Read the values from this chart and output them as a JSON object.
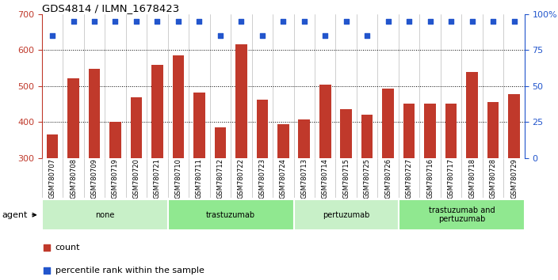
{
  "title": "GDS4814 / ILMN_1678423",
  "samples": [
    "GSM780707",
    "GSM780708",
    "GSM780709",
    "GSM780719",
    "GSM780720",
    "GSM780721",
    "GSM780710",
    "GSM780711",
    "GSM780712",
    "GSM780722",
    "GSM780723",
    "GSM780724",
    "GSM780713",
    "GSM780714",
    "GSM780715",
    "GSM780725",
    "GSM780726",
    "GSM780727",
    "GSM780716",
    "GSM780717",
    "GSM780718",
    "GSM780728",
    "GSM780729"
  ],
  "counts": [
    365,
    522,
    548,
    402,
    470,
    558,
    585,
    482,
    385,
    615,
    462,
    395,
    408,
    505,
    435,
    420,
    493,
    452,
    452,
    452,
    540,
    456,
    478
  ],
  "percentile_ranks": [
    88,
    96,
    96,
    96,
    96,
    96,
    96,
    96,
    88,
    96,
    88,
    96,
    96,
    88,
    96,
    88,
    96,
    96,
    96,
    96,
    96,
    96,
    96
  ],
  "groups": [
    {
      "label": "none",
      "start": 0,
      "end": 6,
      "color": "#c8f0c8"
    },
    {
      "label": "trastuzumab",
      "start": 6,
      "end": 12,
      "color": "#90e890"
    },
    {
      "label": "pertuzumab",
      "start": 12,
      "end": 17,
      "color": "#c8f0c8"
    },
    {
      "label": "trastuzumab and\npertuzumab",
      "start": 17,
      "end": 23,
      "color": "#90e890"
    }
  ],
  "bar_color": "#c0392b",
  "dot_color": "#2255cc",
  "ylim_left": [
    300,
    700
  ],
  "ylim_right": [
    0,
    100
  ],
  "yticks_left": [
    300,
    400,
    500,
    600,
    700
  ],
  "yticks_right": [
    0,
    25,
    50,
    75,
    100
  ],
  "background_color": "#ffffff",
  "label_color_left": "#c0392b",
  "label_color_right": "#2255cc",
  "count_legend": "count",
  "percentile_legend": "percentile rank within the sample",
  "agent_label": "agent"
}
